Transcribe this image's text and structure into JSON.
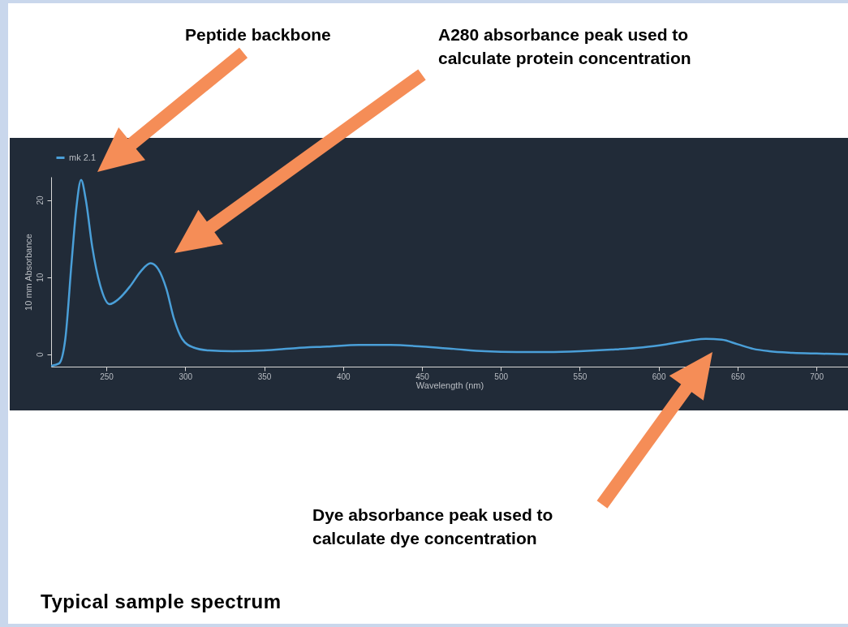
{
  "chart_data": {
    "type": "line",
    "title": "Typical sample spectrum",
    "xlabel": "Wavelength (nm)",
    "ylabel": "10 mm Absorbance",
    "x": [
      215,
      220,
      224,
      228,
      231,
      234,
      237,
      241,
      246,
      252,
      258,
      265,
      272,
      278,
      283,
      288,
      293,
      298,
      305,
      315,
      330,
      350,
      370,
      390,
      410,
      430,
      450,
      470,
      490,
      510,
      530,
      550,
      570,
      590,
      605,
      620,
      630,
      640,
      650,
      660,
      670,
      685,
      700,
      720
    ],
    "series": [
      {
        "name": "mk 2.1",
        "color": "#4a9fd8",
        "values": [
          -1.5,
          -1.2,
          2,
          12,
          19,
          22.6,
          20,
          14,
          9,
          6.5,
          7.2,
          8.8,
          10.8,
          11.8,
          11,
          8.5,
          4.5,
          2,
          0.9,
          0.5,
          0.4,
          0.5,
          0.8,
          1.0,
          1.2,
          1.2,
          1.0,
          0.7,
          0.4,
          0.3,
          0.3,
          0.4,
          0.6,
          0.9,
          1.3,
          1.8,
          2.0,
          1.9,
          1.3,
          0.7,
          0.4,
          0.2,
          0.1,
          0.0
        ]
      }
    ],
    "xlim": [
      215,
      720
    ],
    "xticks": [
      250,
      300,
      350,
      400,
      450,
      500,
      550,
      600,
      650,
      700
    ],
    "ylim": [
      -1.6,
      23
    ],
    "yticks": [
      0,
      10,
      20
    ],
    "grid": false,
    "legend": "top left",
    "marker": "none",
    "line_style": "solid",
    "annotations": [
      "Peptide backbone",
      "A280 absorbance peak used to calculate protein concentration",
      "Dye absorbance peak used to calculate dye concentration"
    ]
  }
}
